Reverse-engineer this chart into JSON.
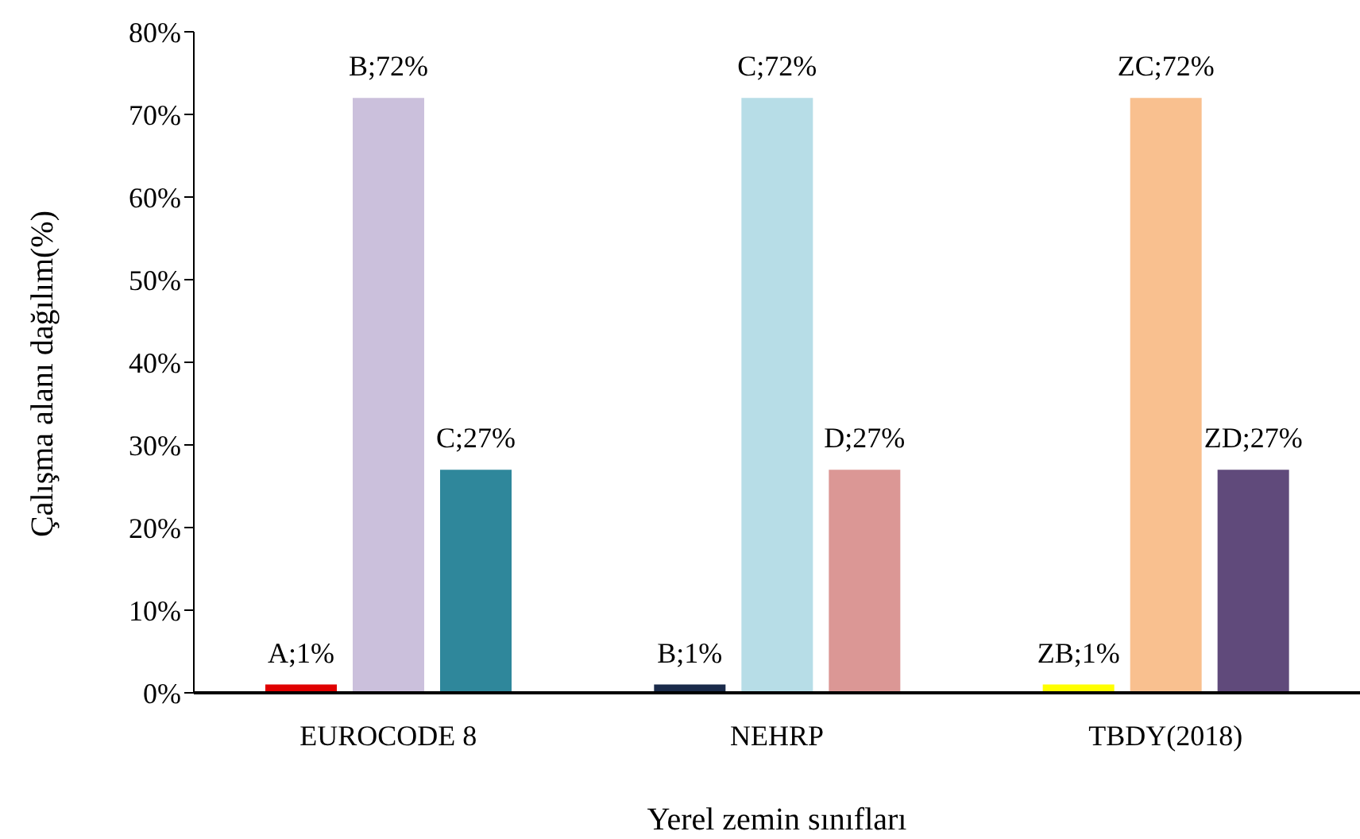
{
  "chart_data": {
    "type": "bar",
    "xlabel": "Yerel zemin sınıfları",
    "ylabel": "Çalışma alanı dağılım(%)",
    "categories": [
      "EUROCODE 8",
      "NEHRP",
      "TBDY(2018)"
    ],
    "ylim": [
      0,
      80
    ],
    "yticks": [
      {
        "value": 0,
        "label": "0%"
      },
      {
        "value": 10,
        "label": "10%"
      },
      {
        "value": 20,
        "label": "20%"
      },
      {
        "value": 30,
        "label": "30%"
      },
      {
        "value": 40,
        "label": "40%"
      },
      {
        "value": 50,
        "label": "50%"
      },
      {
        "value": 60,
        "label": "60%"
      },
      {
        "value": 70,
        "label": "70%"
      },
      {
        "value": 80,
        "label": "80%"
      }
    ],
    "grid": false,
    "legend": false,
    "series": [
      {
        "values": [
          1,
          1,
          1
        ],
        "colors": [
          "#e00000",
          "#1a2a4a",
          "#ffff00"
        ],
        "value_labels": [
          "A;1%",
          "B;1%",
          "ZB;1%"
        ]
      },
      {
        "values": [
          72,
          72,
          72
        ],
        "colors": [
          "#cbc0dc",
          "#b7dde7",
          "#f9c08f"
        ],
        "value_labels": [
          "B;72%",
          "C;72%",
          "ZC;72%"
        ]
      },
      {
        "values": [
          27,
          27,
          27
        ],
        "colors": [
          "#2f879b",
          "#db9795",
          "#604a7b"
        ],
        "value_labels": [
          "C;27%",
          "D;27%",
          "ZD;27%"
        ]
      }
    ]
  }
}
